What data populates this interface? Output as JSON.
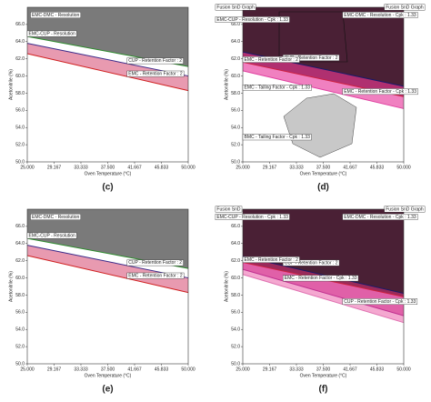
{
  "chart_data": [
    {
      "type": "line",
      "label": "(c)",
      "xlabel": "Oven Temperature (°C)",
      "ylabel": "Acetonitrile (%)",
      "xlim": [
        25,
        50
      ],
      "ylim": [
        50,
        68
      ],
      "xticks": [
        {
          "value": 25,
          "label": "25.000"
        },
        {
          "value": 29.167,
          "label": "29.167"
        },
        {
          "value": 33.333,
          "label": "33.333"
        },
        {
          "value": 37.5,
          "label": "37.500"
        },
        {
          "value": 41.667,
          "label": "41.667"
        },
        {
          "value": 45.833,
          "label": "45.833"
        },
        {
          "value": 50,
          "label": "50.000"
        }
      ],
      "yticks": [
        {
          "value": 50,
          "label": "50.0"
        },
        {
          "value": 52,
          "label": "52.0"
        },
        {
          "value": 54,
          "label": "54.0"
        },
        {
          "value": 56,
          "label": "56.0"
        },
        {
          "value": 58,
          "label": "58.0"
        },
        {
          "value": 60,
          "label": "60.0"
        },
        {
          "value": 62,
          "label": "62.0"
        },
        {
          "value": 64,
          "label": "64.0"
        },
        {
          "value": 66,
          "label": "66.0"
        }
      ],
      "x": [
        25,
        50
      ],
      "series": [
        {
          "name": "EMC-CUP - Resolution",
          "color": "#2e8b2e",
          "fill": "#7a7a7a",
          "values": [
            64.6,
            61.1
          ]
        },
        {
          "name": "CUP - Retention Factor : 2",
          "color": "#3a2a8a",
          "fill": "#ffffff",
          "values": [
            63.8,
            60.0
          ]
        },
        {
          "name": "EMC - Retention Factor : 2",
          "color": "#d02020",
          "fill": "#e89ab0",
          "values": [
            62.6,
            58.3
          ]
        }
      ],
      "annotations": [
        "EMC-DMC - Resolution"
      ]
    },
    {
      "type": "line",
      "label": "(d)",
      "xlabel": "Oven Temperature (°C)",
      "ylabel": "Acetonitrile (%)",
      "xlim": [
        25,
        50
      ],
      "ylim": [
        50,
        68
      ],
      "xticks": [
        {
          "value": 25,
          "label": "25.000"
        },
        {
          "value": 29.167,
          "label": "29.167"
        },
        {
          "value": 33.333,
          "label": "33.333"
        },
        {
          "value": 37.5,
          "label": "37.500"
        },
        {
          "value": 41.667,
          "label": "41.667"
        },
        {
          "value": 45.833,
          "label": "45.833"
        },
        {
          "value": 50,
          "label": "50.000"
        }
      ],
      "yticks": [
        {
          "value": 50,
          "label": "50.0"
        },
        {
          "value": 52,
          "label": "52.0"
        },
        {
          "value": 54,
          "label": "54.0"
        },
        {
          "value": 56,
          "label": "56.0"
        },
        {
          "value": 58,
          "label": "58.0"
        },
        {
          "value": 60,
          "label": "60.0"
        },
        {
          "value": 62,
          "label": "62.0"
        },
        {
          "value": 64,
          "label": "64.0"
        },
        {
          "value": 66,
          "label": "66.0"
        }
      ],
      "x": [
        25,
        50
      ],
      "series": [
        {
          "name": "CUP - Retention Factor : 2",
          "color": "#1a1a6a",
          "fill": "#4a2035",
          "values": [
            62.8,
            58.8
          ]
        },
        {
          "name": "EMC - Retention Factor : 2",
          "color": "#d02040",
          "fill": "#b03070",
          "values": [
            61.6,
            57.6
          ]
        },
        {
          "name": "EMC - Retention Factor - Cpk : 1.33",
          "color": "#e040a0",
          "fill": "#f080c0",
          "values": [
            60.6,
            56.2
          ]
        }
      ],
      "annotations": [
        "Fusion SnD Graph",
        "Fusion SnD Graph",
        "EMC-CUP - Resolution - Cpk : 1.33",
        "EMC-DMC - Resolution - Cpk : 1.33",
        "EMC - Tailing Factor - Cpk : 1.33",
        "BMC - Tailing Factor - Cpk : 1.33"
      ]
    },
    {
      "type": "line",
      "label": "(e)",
      "xlabel": "Oven Temperature (°C)",
      "ylabel": "Acetonitrile (%)",
      "xlim": [
        25,
        50
      ],
      "ylim": [
        50,
        68
      ],
      "xticks": [
        {
          "value": 25,
          "label": "25.000"
        },
        {
          "value": 29.167,
          "label": "29.167"
        },
        {
          "value": 33.333,
          "label": "33.333"
        },
        {
          "value": 37.5,
          "label": "37.500"
        },
        {
          "value": 41.667,
          "label": "41.667"
        },
        {
          "value": 45.833,
          "label": "45.833"
        },
        {
          "value": 50,
          "label": "50.000"
        }
      ],
      "yticks": [
        {
          "value": 50,
          "label": "50.0"
        },
        {
          "value": 52,
          "label": "52.0"
        },
        {
          "value": 54,
          "label": "54.0"
        },
        {
          "value": 56,
          "label": "56.0"
        },
        {
          "value": 58,
          "label": "58.0"
        },
        {
          "value": 60,
          "label": "60.0"
        },
        {
          "value": 62,
          "label": "62.0"
        },
        {
          "value": 64,
          "label": "64.0"
        },
        {
          "value": 66,
          "label": "66.0"
        }
      ],
      "x": [
        25,
        50
      ],
      "series": [
        {
          "name": "EMC-CUP - Resolution",
          "color": "#2e8b2e",
          "fill": "#7a7a7a",
          "values": [
            64.6,
            61.1
          ]
        },
        {
          "name": "CUP - Retention Factor : 2",
          "color": "#3a2a8a",
          "fill": "#ffffff",
          "values": [
            63.8,
            60.0
          ]
        },
        {
          "name": "EMC - Retention Factor : 2",
          "color": "#d02020",
          "fill": "#e89ab0",
          "values": [
            62.6,
            58.3
          ]
        }
      ],
      "annotations": [
        "EMC-DMC - Resolution"
      ]
    },
    {
      "type": "line",
      "label": "(f)",
      "xlabel": "Oven Temperature (°C)",
      "ylabel": "Acetonitrile (%)",
      "xlim": [
        25,
        50
      ],
      "ylim": [
        50,
        68
      ],
      "xticks": [
        {
          "value": 25,
          "label": "25.000"
        },
        {
          "value": 29.167,
          "label": "29.167"
        },
        {
          "value": 33.333,
          "label": "33.333"
        },
        {
          "value": 37.5,
          "label": "37.500"
        },
        {
          "value": 41.667,
          "label": "41.667"
        },
        {
          "value": 45.833,
          "label": "45.833"
        },
        {
          "value": 50,
          "label": "50.000"
        }
      ],
      "yticks": [
        {
          "value": 50,
          "label": "50.0"
        },
        {
          "value": 52,
          "label": "52.0"
        },
        {
          "value": 54,
          "label": "54.0"
        },
        {
          "value": 56,
          "label": "56.0"
        },
        {
          "value": 58,
          "label": "58.0"
        },
        {
          "value": 60,
          "label": "60.0"
        },
        {
          "value": 62,
          "label": "62.0"
        },
        {
          "value": 64,
          "label": "64.0"
        },
        {
          "value": 66,
          "label": "66.0"
        }
      ],
      "x": [
        25,
        50
      ],
      "series": [
        {
          "name": "CUP - Retention Factor : 2",
          "color": "#1a1a6a",
          "fill": "#4a2035",
          "values": [
            62.5,
            58.2
          ]
        },
        {
          "name": "EMC - Retention Factor : 2",
          "color": "#d02040",
          "fill": "#9a2a5a",
          "values": [
            61.8,
            57.8
          ]
        },
        {
          "name": "EMC - Retention Factor - Cpk : 1.33",
          "color": "#c03090",
          "fill": "#e060a8",
          "values": [
            61.0,
            55.6
          ]
        },
        {
          "name": "CUP - Retention Factor - Cpk : 1.33",
          "color": "#e070b0",
          "fill": "#f4a8d0",
          "values": [
            60.4,
            54.8
          ]
        }
      ],
      "annotations": [
        "Fusion SnD",
        "Fusion SnD Graph",
        "EMC-CUP - Resolution - Cpk : 1.33",
        "EMC-DMC - Resolution - Cpk : 1.33"
      ]
    }
  ]
}
